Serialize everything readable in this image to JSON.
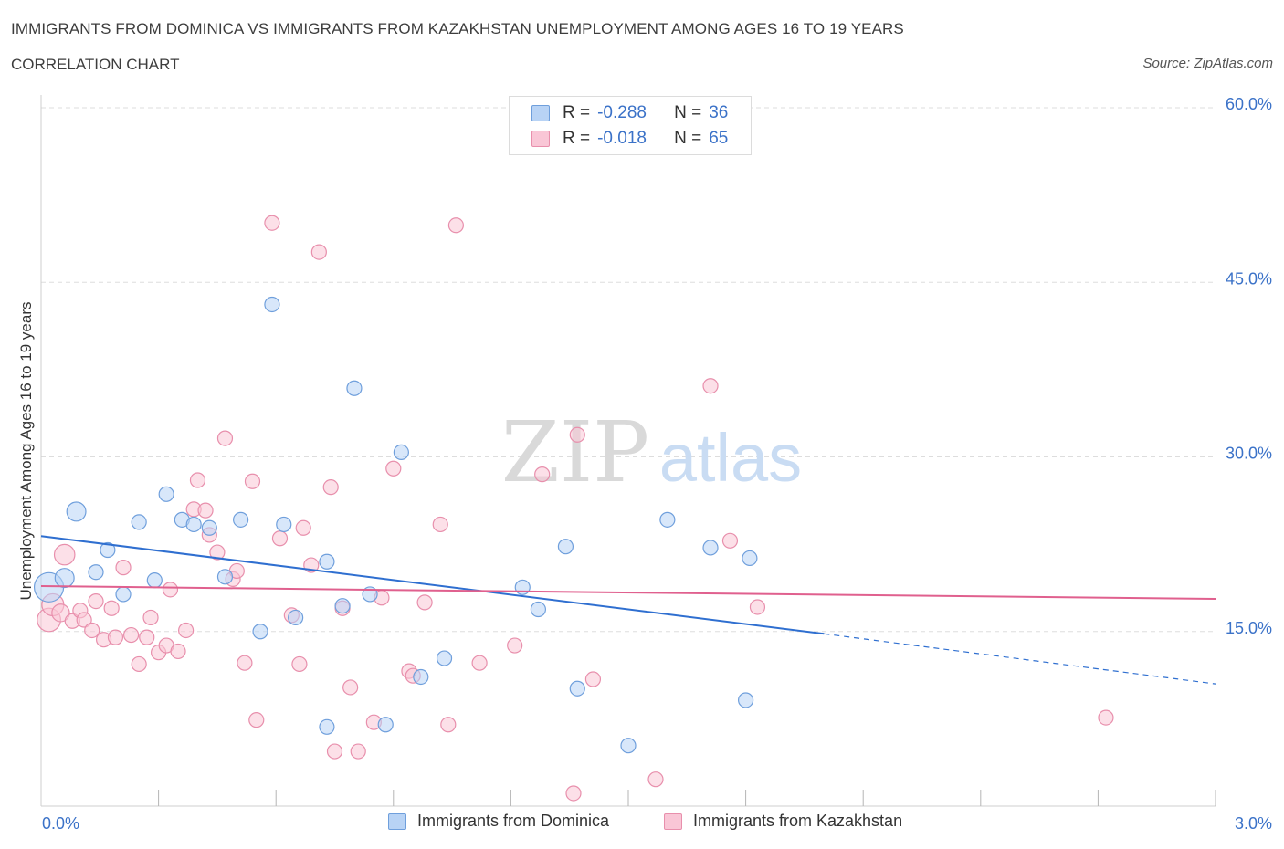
{
  "title": "IMMIGRANTS FROM DOMINICA VS IMMIGRANTS FROM KAZAKHSTAN UNEMPLOYMENT AMONG AGES 16 TO 19 YEARS",
  "subtitle": "CORRELATION CHART",
  "source": "Source: ZipAtlas.com",
  "watermark": {
    "zip": "ZIP",
    "atlas": "atlas"
  },
  "legend": {
    "dominica": {
      "r_label": "R =",
      "r_value": "-0.288",
      "n_label": "N =",
      "n_value": "36"
    },
    "kazakhstan": {
      "r_label": "R =",
      "r_value": "-0.018",
      "n_label": "N =",
      "n_value": "65"
    }
  },
  "bottom_legend": {
    "dominica": "Immigrants from Dominica",
    "kazakhstan": "Immigrants from Kazakhstan"
  },
  "colors": {
    "dominica_fill": "#b8d3f5",
    "dominica_stroke": "#6f9fdc",
    "dominica_line": "#2f6fd0",
    "kazakhstan_fill": "#f9c6d6",
    "kazakhstan_stroke": "#e88fac",
    "kazakhstan_line": "#e0608e",
    "axis_label": "#3b72c8",
    "grid": "#dddddd"
  },
  "chart_data": {
    "type": "scatter",
    "title": "IMMIGRANTS FROM DOMINICA VS IMMIGRANTS FROM KAZAKHSTAN UNEMPLOYMENT AMONG AGES 16 TO 19 YEARS",
    "xlabel": "",
    "ylabel": "Unemployment Among Ages 16 to 19 years",
    "xlim": [
      0,
      3
    ],
    "ylim": [
      0,
      60
    ],
    "x_tick_labels": [
      "0.0%",
      "3.0%"
    ],
    "y_ticks": [
      15,
      30,
      45,
      60
    ],
    "y_tick_labels": [
      "15.0%",
      "30.0%",
      "45.0%",
      "60.0%"
    ],
    "grid": true,
    "series": [
      {
        "name": "Immigrants from Dominica",
        "r": -0.288,
        "n": 36,
        "trend": {
          "x0": 0.0,
          "y0": 23.2,
          "x1": 2.0,
          "y1": 14.8,
          "dashed_to_x": 3.0,
          "dashed_to_y": 10.5
        },
        "points": [
          {
            "x": 0.02,
            "y": 18.8,
            "s": 2
          },
          {
            "x": 0.06,
            "y": 19.6,
            "s": 1.3
          },
          {
            "x": 0.09,
            "y": 25.3,
            "s": 1.3
          },
          {
            "x": 0.17,
            "y": 22.0,
            "s": 1
          },
          {
            "x": 0.14,
            "y": 20.1,
            "s": 1
          },
          {
            "x": 0.21,
            "y": 18.2,
            "s": 1
          },
          {
            "x": 0.25,
            "y": 24.4,
            "s": 1
          },
          {
            "x": 0.29,
            "y": 19.4,
            "s": 1
          },
          {
            "x": 0.32,
            "y": 26.8,
            "s": 1
          },
          {
            "x": 0.36,
            "y": 24.6,
            "s": 1
          },
          {
            "x": 0.39,
            "y": 24.2,
            "s": 1
          },
          {
            "x": 0.43,
            "y": 23.9,
            "s": 1
          },
          {
            "x": 0.47,
            "y": 19.7,
            "s": 1
          },
          {
            "x": 0.51,
            "y": 24.6,
            "s": 1
          },
          {
            "x": 0.56,
            "y": 15.0,
            "s": 1
          },
          {
            "x": 0.59,
            "y": 43.1,
            "s": 1
          },
          {
            "x": 0.62,
            "y": 24.2,
            "s": 1
          },
          {
            "x": 0.65,
            "y": 16.2,
            "s": 1
          },
          {
            "x": 0.73,
            "y": 6.8,
            "s": 1
          },
          {
            "x": 0.73,
            "y": 21.0,
            "s": 1
          },
          {
            "x": 0.77,
            "y": 17.2,
            "s": 1
          },
          {
            "x": 0.8,
            "y": 35.9,
            "s": 1
          },
          {
            "x": 0.84,
            "y": 18.2,
            "s": 1
          },
          {
            "x": 0.88,
            "y": 7.0,
            "s": 1
          },
          {
            "x": 0.92,
            "y": 30.4,
            "s": 1
          },
          {
            "x": 0.97,
            "y": 11.1,
            "s": 1
          },
          {
            "x": 1.03,
            "y": 12.7,
            "s": 1
          },
          {
            "x": 1.23,
            "y": 18.8,
            "s": 1
          },
          {
            "x": 1.27,
            "y": 16.9,
            "s": 1
          },
          {
            "x": 1.34,
            "y": 22.3,
            "s": 1
          },
          {
            "x": 1.37,
            "y": 10.1,
            "s": 1
          },
          {
            "x": 1.5,
            "y": 5.2,
            "s": 1
          },
          {
            "x": 1.6,
            "y": 24.6,
            "s": 1
          },
          {
            "x": 1.71,
            "y": 22.2,
            "s": 1
          },
          {
            "x": 1.8,
            "y": 9.1,
            "s": 1
          },
          {
            "x": 1.81,
            "y": 21.3,
            "s": 1
          }
        ]
      },
      {
        "name": "Immigrants from Kazakhstan",
        "r": -0.018,
        "n": 65,
        "trend": {
          "x0": 0.0,
          "y0": 18.9,
          "x1": 3.0,
          "y1": 17.8
        },
        "points": [
          {
            "x": 0.02,
            "y": 16.0,
            "s": 1.6
          },
          {
            "x": 0.03,
            "y": 17.3,
            "s": 1.5
          },
          {
            "x": 0.05,
            "y": 16.6,
            "s": 1.2
          },
          {
            "x": 0.06,
            "y": 21.6,
            "s": 1.4
          },
          {
            "x": 0.08,
            "y": 15.9,
            "s": 1
          },
          {
            "x": 0.1,
            "y": 16.8,
            "s": 1
          },
          {
            "x": 0.11,
            "y": 16.0,
            "s": 1
          },
          {
            "x": 0.13,
            "y": 15.1,
            "s": 1
          },
          {
            "x": 0.14,
            "y": 17.6,
            "s": 1
          },
          {
            "x": 0.16,
            "y": 14.3,
            "s": 1
          },
          {
            "x": 0.18,
            "y": 17.0,
            "s": 1
          },
          {
            "x": 0.19,
            "y": 14.5,
            "s": 1
          },
          {
            "x": 0.21,
            "y": 20.5,
            "s": 1
          },
          {
            "x": 0.23,
            "y": 14.7,
            "s": 1
          },
          {
            "x": 0.25,
            "y": 12.2,
            "s": 1
          },
          {
            "x": 0.27,
            "y": 14.5,
            "s": 1
          },
          {
            "x": 0.28,
            "y": 16.2,
            "s": 1
          },
          {
            "x": 0.3,
            "y": 13.2,
            "s": 1
          },
          {
            "x": 0.32,
            "y": 13.8,
            "s": 1
          },
          {
            "x": 0.33,
            "y": 18.6,
            "s": 1
          },
          {
            "x": 0.35,
            "y": 13.3,
            "s": 1
          },
          {
            "x": 0.37,
            "y": 15.1,
            "s": 1
          },
          {
            "x": 0.39,
            "y": 25.5,
            "s": 1
          },
          {
            "x": 0.4,
            "y": 28.0,
            "s": 1
          },
          {
            "x": 0.42,
            "y": 25.4,
            "s": 1
          },
          {
            "x": 0.43,
            "y": 23.3,
            "s": 1
          },
          {
            "x": 0.45,
            "y": 21.8,
            "s": 1
          },
          {
            "x": 0.47,
            "y": 31.6,
            "s": 1
          },
          {
            "x": 0.49,
            "y": 19.5,
            "s": 1
          },
          {
            "x": 0.5,
            "y": 20.2,
            "s": 1
          },
          {
            "x": 0.52,
            "y": 12.3,
            "s": 1
          },
          {
            "x": 0.54,
            "y": 27.9,
            "s": 1
          },
          {
            "x": 0.55,
            "y": 7.4,
            "s": 1
          },
          {
            "x": 0.59,
            "y": 50.1,
            "s": 1
          },
          {
            "x": 0.61,
            "y": 23.0,
            "s": 1
          },
          {
            "x": 0.64,
            "y": 16.4,
            "s": 1
          },
          {
            "x": 0.66,
            "y": 12.2,
            "s": 1
          },
          {
            "x": 0.67,
            "y": 23.9,
            "s": 1
          },
          {
            "x": 0.69,
            "y": 20.7,
            "s": 1
          },
          {
            "x": 0.71,
            "y": 47.6,
            "s": 1
          },
          {
            "x": 0.74,
            "y": 27.4,
            "s": 1
          },
          {
            "x": 0.75,
            "y": 4.7,
            "s": 1
          },
          {
            "x": 0.77,
            "y": 17.0,
            "s": 1
          },
          {
            "x": 0.79,
            "y": 10.2,
            "s": 1
          },
          {
            "x": 0.81,
            "y": 4.7,
            "s": 1
          },
          {
            "x": 0.85,
            "y": 7.2,
            "s": 1
          },
          {
            "x": 0.87,
            "y": 17.9,
            "s": 1
          },
          {
            "x": 0.9,
            "y": 29.0,
            "s": 1
          },
          {
            "x": 0.94,
            "y": 11.6,
            "s": 1
          },
          {
            "x": 0.95,
            "y": 11.2,
            "s": 1
          },
          {
            "x": 0.98,
            "y": 17.5,
            "s": 1
          },
          {
            "x": 1.02,
            "y": 24.2,
            "s": 1
          },
          {
            "x": 1.04,
            "y": 7.0,
            "s": 1
          },
          {
            "x": 1.06,
            "y": 49.9,
            "s": 1
          },
          {
            "x": 1.12,
            "y": 12.3,
            "s": 1
          },
          {
            "x": 1.21,
            "y": 13.8,
            "s": 1
          },
          {
            "x": 1.28,
            "y": 28.5,
            "s": 1
          },
          {
            "x": 1.36,
            "y": 1.1,
            "s": 1
          },
          {
            "x": 1.37,
            "y": 31.9,
            "s": 1
          },
          {
            "x": 1.41,
            "y": 10.9,
            "s": 1
          },
          {
            "x": 1.57,
            "y": 2.3,
            "s": 1
          },
          {
            "x": 1.71,
            "y": 36.1,
            "s": 1
          },
          {
            "x": 1.76,
            "y": 22.8,
            "s": 1
          },
          {
            "x": 1.83,
            "y": 17.1,
            "s": 1
          },
          {
            "x": 2.72,
            "y": 7.6,
            "s": 1
          }
        ]
      }
    ]
  }
}
